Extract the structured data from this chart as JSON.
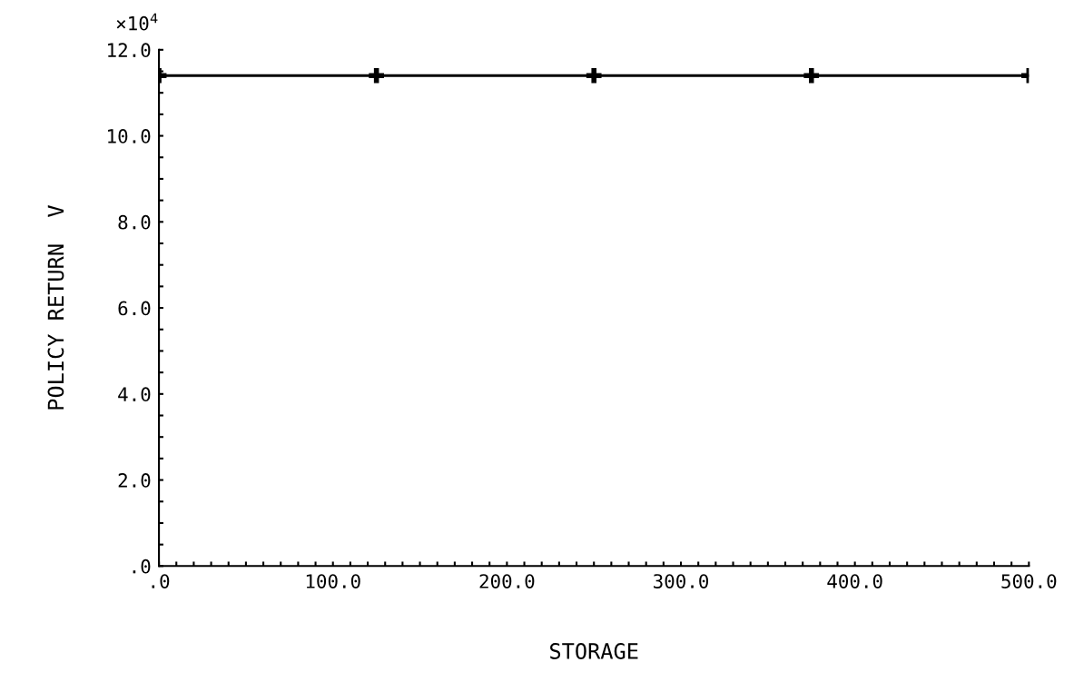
{
  "chart_data": {
    "type": "line",
    "xlabel": "STORAGE",
    "ylabel": "POLICY RETURN  V",
    "annotations": [
      "×10$^{4}$"
    ],
    "x": [
      0,
      125,
      250,
      375,
      500
    ],
    "series": [
      {
        "color": "#000000",
        "values": [
          11.4,
          11.4,
          11.4,
          11.4,
          11.4
        ]
      }
    ],
    "marker": "cross",
    "line_style": "solid",
    "grid": false,
    "legend": false,
    "xlim": [
      0,
      500
    ],
    "ylim": [
      0,
      12
    ],
    "xticks": [
      {
        "value": 0,
        "label": ".0"
      },
      {
        "value": 100,
        "label": "100.0"
      },
      {
        "value": 200,
        "label": "200.0"
      },
      {
        "value": 300,
        "label": "300.0"
      },
      {
        "value": 400,
        "label": "400.0"
      },
      {
        "value": 500,
        "label": "500.0"
      },
      {
        "value": 10,
        "label": null
      },
      {
        "value": 20,
        "label": null
      },
      {
        "value": 30,
        "label": null
      },
      {
        "value": 40,
        "label": null
      },
      {
        "value": 50,
        "label": null
      },
      {
        "value": 60,
        "label": null
      },
      {
        "value": 70,
        "label": null
      },
      {
        "value": 80,
        "label": null
      },
      {
        "value": 90,
        "label": null
      },
      {
        "value": 110,
        "label": null
      },
      {
        "value": 120,
        "label": null
      },
      {
        "value": 130,
        "label": null
      },
      {
        "value": 140,
        "label": null
      },
      {
        "value": 150,
        "label": null
      },
      {
        "value": 160,
        "label": null
      },
      {
        "value": 170,
        "label": null
      },
      {
        "value": 180,
        "label": null
      },
      {
        "value": 190,
        "label": null
      },
      {
        "value": 210,
        "label": null
      },
      {
        "value": 220,
        "label": null
      },
      {
        "value": 230,
        "label": null
      },
      {
        "value": 240,
        "label": null
      },
      {
        "value": 250,
        "label": null
      },
      {
        "value": 260,
        "label": null
      },
      {
        "value": 270,
        "label": null
      },
      {
        "value": 280,
        "label": null
      },
      {
        "value": 290,
        "label": null
      },
      {
        "value": 310,
        "label": null
      },
      {
        "value": 320,
        "label": null
      },
      {
        "value": 330,
        "label": null
      },
      {
        "value": 340,
        "label": null
      },
      {
        "value": 350,
        "label": null
      },
      {
        "value": 360,
        "label": null
      },
      {
        "value": 370,
        "label": null
      },
      {
        "value": 380,
        "label": null
      },
      {
        "value": 390,
        "label": null
      },
      {
        "value": 410,
        "label": null
      },
      {
        "value": 420,
        "label": null
      },
      {
        "value": 430,
        "label": null
      },
      {
        "value": 440,
        "label": null
      },
      {
        "value": 450,
        "label": null
      },
      {
        "value": 460,
        "label": null
      },
      {
        "value": 470,
        "label": null
      },
      {
        "value": 480,
        "label": null
      },
      {
        "value": 490,
        "label": null
      }
    ],
    "yticks": [
      {
        "value": 0,
        "label": ".0"
      },
      {
        "value": 2,
        "label": "2.0"
      },
      {
        "value": 4,
        "label": "4.0"
      },
      {
        "value": 6,
        "label": "6.0"
      },
      {
        "value": 8,
        "label": "8.0"
      },
      {
        "value": 10,
        "label": "10.0"
      },
      {
        "value": 12,
        "label": "12.0"
      },
      {
        "value": 0.5,
        "label": null
      },
      {
        "value": 1,
        "label": null
      },
      {
        "value": 1.5,
        "label": null
      },
      {
        "value": 2.5,
        "label": null
      },
      {
        "value": 3,
        "label": null
      },
      {
        "value": 3.5,
        "label": null
      },
      {
        "value": 4.5,
        "label": null
      },
      {
        "value": 5,
        "label": null
      },
      {
        "value": 5.5,
        "label": null
      },
      {
        "value": 6.5,
        "label": null
      },
      {
        "value": 7,
        "label": null
      },
      {
        "value": 7.5,
        "label": null
      },
      {
        "value": 8.5,
        "label": null
      },
      {
        "value": 9,
        "label": null
      },
      {
        "value": 9.5,
        "label": null
      },
      {
        "value": 10.5,
        "label": null
      },
      {
        "value": 11,
        "label": null
      },
      {
        "value": 11.5,
        "label": null
      }
    ]
  }
}
